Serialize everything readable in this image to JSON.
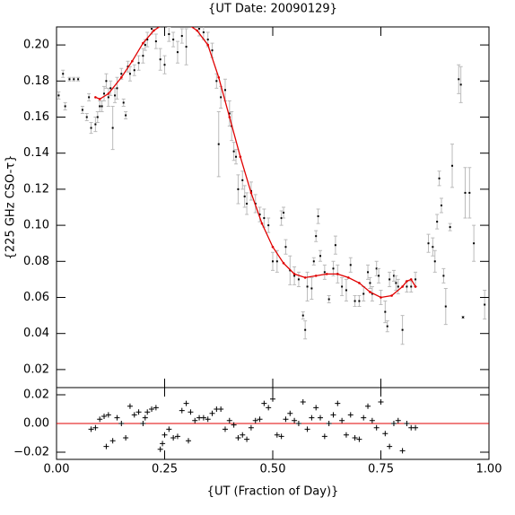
{
  "chart_data": [
    {
      "type": "scatter",
      "title": "{UT Date: 20090129}",
      "ylabel": "{225 GHz CSO-τ}",
      "xlim": [
        0,
        1
      ],
      "ylim": [
        0.01,
        0.21
      ],
      "yticks": [
        {
          "value": 0.02,
          "label": "0.02"
        },
        {
          "value": 0.04,
          "label": "0.04"
        },
        {
          "value": 0.06,
          "label": "0.06"
        },
        {
          "value": 0.08,
          "label": "0.08"
        },
        {
          "value": 0.1,
          "label": "0.10"
        },
        {
          "value": 0.12,
          "label": "0.12"
        },
        {
          "value": 0.14,
          "label": "0.14"
        },
        {
          "value": 0.16,
          "label": "0.16"
        },
        {
          "value": 0.18,
          "label": "0.18"
        },
        {
          "value": 0.2,
          "label": "0.20"
        }
      ],
      "series": [
        {
          "color": "#000000",
          "error_color": "#bbbbbb",
          "x": [
            0.005,
            0.015,
            0.02,
            0.03,
            0.04,
            0.05,
            0.06,
            0.07,
            0.075,
            0.08,
            0.09,
            0.095,
            0.1,
            0.105,
            0.11,
            0.115,
            0.12,
            0.125,
            0.13,
            0.135,
            0.14,
            0.15,
            0.155,
            0.16,
            0.165,
            0.17,
            0.18,
            0.19,
            0.2,
            0.205,
            0.21,
            0.22,
            0.23,
            0.24,
            0.25,
            0.26,
            0.27,
            0.28,
            0.29,
            0.3,
            0.33,
            0.34,
            0.35,
            0.36,
            0.37,
            0.375,
            0.38,
            0.39,
            0.4,
            0.405,
            0.41,
            0.415,
            0.42,
            0.43,
            0.435,
            0.44,
            0.45,
            0.46,
            0.47,
            0.48,
            0.49,
            0.5,
            0.51,
            0.52,
            0.525,
            0.53,
            0.54,
            0.55,
            0.56,
            0.57,
            0.575,
            0.58,
            0.59,
            0.595,
            0.6,
            0.605,
            0.61,
            0.62,
            0.63,
            0.64,
            0.645,
            0.65,
            0.66,
            0.67,
            0.68,
            0.69,
            0.7,
            0.71,
            0.72,
            0.725,
            0.73,
            0.74,
            0.745,
            0.75,
            0.76,
            0.765,
            0.77,
            0.78,
            0.785,
            0.79,
            0.8,
            0.81,
            0.82,
            0.83,
            0.86,
            0.87,
            0.875,
            0.88,
            0.885,
            0.89,
            0.895,
            0.9,
            0.91,
            0.915,
            0.93,
            0.935,
            0.94,
            0.945,
            0.955,
            0.965,
            0.99
          ],
          "values": [
            0.172,
            0.184,
            0.166,
            0.181,
            0.181,
            0.181,
            0.164,
            0.16,
            0.171,
            0.154,
            0.156,
            0.16,
            0.166,
            0.166,
            0.173,
            0.18,
            0.171,
            0.176,
            0.154,
            0.172,
            0.176,
            0.184,
            0.168,
            0.161,
            0.188,
            0.184,
            0.186,
            0.19,
            0.194,
            0.2,
            0.203,
            0.209,
            0.202,
            0.192,
            0.189,
            0.206,
            0.203,
            0.196,
            0.205,
            0.199,
            0.209,
            0.207,
            0.203,
            0.197,
            0.18,
            0.145,
            0.171,
            0.175,
            0.162,
            0.155,
            0.141,
            0.138,
            0.12,
            0.125,
            0.116,
            0.112,
            0.119,
            0.112,
            0.106,
            0.104,
            0.1,
            0.08,
            0.08,
            0.104,
            0.107,
            0.088,
            0.075,
            0.072,
            0.07,
            0.05,
            0.042,
            0.066,
            0.065,
            0.08,
            0.094,
            0.105,
            0.083,
            0.074,
            0.059,
            0.076,
            0.089,
            0.073,
            0.066,
            0.064,
            0.078,
            0.058,
            0.058,
            0.062,
            0.074,
            0.068,
            0.062,
            0.076,
            0.072,
            0.06,
            0.052,
            0.044,
            0.07,
            0.072,
            0.068,
            0.066,
            0.042,
            0.066,
            0.066,
            0.07,
            0.09,
            0.088,
            0.08,
            0.102,
            0.126,
            0.111,
            0.072,
            0.055,
            0.099,
            0.133,
            0.181,
            0.178,
            0.049,
            0.118,
            0.118,
            0.09,
            0.056
          ],
          "errors": [
            0.002,
            0.002,
            0.002,
            0.001,
            0.001,
            0.001,
            0.002,
            0.002,
            0.002,
            0.003,
            0.004,
            0.003,
            0.003,
            0.003,
            0.004,
            0.004,
            0.005,
            0.004,
            0.012,
            0.004,
            0.006,
            0.003,
            0.002,
            0.002,
            0.003,
            0.004,
            0.003,
            0.004,
            0.004,
            0.003,
            0.004,
            0.003,
            0.004,
            0.006,
            0.005,
            0.004,
            0.004,
            0.006,
            0.004,
            0.01,
            0.004,
            0.004,
            0.004,
            0.004,
            0.004,
            0.018,
            0.006,
            0.006,
            0.007,
            0.008,
            0.005,
            0.004,
            0.008,
            0.005,
            0.006,
            0.006,
            0.005,
            0.005,
            0.004,
            0.005,
            0.004,
            0.005,
            0.006,
            0.004,
            0.003,
            0.004,
            0.008,
            0.005,
            0.004,
            0.002,
            0.005,
            0.008,
            0.006,
            0.002,
            0.003,
            0.004,
            0.003,
            0.004,
            0.002,
            0.004,
            0.005,
            0.005,
            0.005,
            0.006,
            0.004,
            0.003,
            0.003,
            0.004,
            0.004,
            0.003,
            0.004,
            0.004,
            0.004,
            0.004,
            0.006,
            0.003,
            0.004,
            0.003,
            0.004,
            0.004,
            0.008,
            0.003,
            0.003,
            0.004,
            0.005,
            0.005,
            0.006,
            0.004,
            0.004,
            0.004,
            0.004,
            0.01,
            0.002,
            0.012,
            0.008,
            0.01,
            0.0005,
            0.014,
            0.014,
            0.01,
            0.008
          ]
        },
        {
          "type": "line",
          "color": "#e00000",
          "x": [
            0.09,
            0.1,
            0.12,
            0.15,
            0.175,
            0.2,
            0.225,
            0.25,
            0.275,
            0.3,
            0.325,
            0.35,
            0.375,
            0.4,
            0.425,
            0.45,
            0.475,
            0.5,
            0.525,
            0.55,
            0.575,
            0.6,
            0.625,
            0.65,
            0.675,
            0.7,
            0.725,
            0.75,
            0.775,
            0.8,
            0.81,
            0.82,
            0.83
          ],
          "values": [
            0.171,
            0.17,
            0.173,
            0.182,
            0.191,
            0.201,
            0.208,
            0.212,
            0.213,
            0.212,
            0.208,
            0.2,
            0.182,
            0.16,
            0.138,
            0.118,
            0.101,
            0.088,
            0.079,
            0.073,
            0.071,
            0.072,
            0.073,
            0.073,
            0.071,
            0.068,
            0.063,
            0.06,
            0.061,
            0.066,
            0.069,
            0.07,
            0.066
          ]
        }
      ]
    },
    {
      "type": "scatter",
      "xlabel": "{UT (Fraction of Day)}",
      "xlim": [
        0,
        1
      ],
      "ylim": [
        -0.025,
        0.025
      ],
      "xticks": [
        {
          "value": 0,
          "label": "0.00"
        },
        {
          "value": 0.25,
          "label": "0.25"
        },
        {
          "value": 0.5,
          "label": "0.50"
        },
        {
          "value": 0.75,
          "label": "0.75"
        },
        {
          "value": 1,
          "label": "1.00"
        }
      ],
      "yticks": [
        {
          "value": -0.02,
          "label": "−0.02"
        },
        {
          "value": 0,
          "label": "0.00"
        },
        {
          "value": 0.02,
          "label": "0.02"
        }
      ],
      "zero_line_color": "#e00000",
      "series": [
        {
          "color": "#000000",
          "x": [
            0.08,
            0.09,
            0.1,
            0.11,
            0.115,
            0.12,
            0.13,
            0.14,
            0.15,
            0.16,
            0.17,
            0.18,
            0.19,
            0.2,
            0.205,
            0.21,
            0.22,
            0.23,
            0.24,
            0.245,
            0.25,
            0.26,
            0.27,
            0.28,
            0.29,
            0.3,
            0.305,
            0.31,
            0.32,
            0.33,
            0.34,
            0.35,
            0.36,
            0.37,
            0.38,
            0.39,
            0.4,
            0.41,
            0.42,
            0.43,
            0.44,
            0.45,
            0.46,
            0.47,
            0.48,
            0.49,
            0.5,
            0.51,
            0.52,
            0.53,
            0.54,
            0.55,
            0.56,
            0.57,
            0.58,
            0.59,
            0.6,
            0.61,
            0.62,
            0.63,
            0.64,
            0.65,
            0.66,
            0.67,
            0.68,
            0.69,
            0.7,
            0.71,
            0.72,
            0.73,
            0.74,
            0.75,
            0.76,
            0.77,
            0.78,
            0.79,
            0.8,
            0.81,
            0.82,
            0.83
          ],
          "values": [
            -0.004,
            -0.003,
            0.003,
            0.005,
            -0.016,
            0.006,
            -0.012,
            0.004,
            0,
            -0.01,
            0.012,
            0.006,
            0.008,
            0,
            0.004,
            0.008,
            0.01,
            0.011,
            -0.018,
            -0.014,
            -0.008,
            -0.004,
            -0.01,
            -0.009,
            0.009,
            0.014,
            -0.012,
            0.008,
            0.002,
            0.004,
            0.004,
            0.003,
            0.007,
            0.01,
            0.01,
            -0.004,
            0.002,
            -0.001,
            -0.01,
            -0.008,
            -0.011,
            -0.003,
            0.002,
            0.003,
            0.014,
            0.011,
            0.017,
            -0.008,
            -0.009,
            0.003,
            0.007,
            0.002,
            0,
            0.015,
            -0.004,
            0.004,
            0.011,
            0.004,
            -0.009,
            0,
            0.006,
            0.014,
            0.002,
            -0.008,
            0.006,
            -0.01,
            -0.011,
            0.004,
            0.012,
            0.002,
            -0.003,
            0.015,
            -0.007,
            -0.016,
            0,
            0.002,
            -0.019,
            0,
            -0.003,
            -0.003
          ]
        }
      ]
    }
  ]
}
